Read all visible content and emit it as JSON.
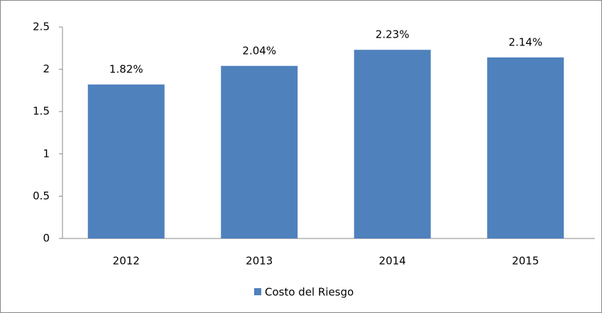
{
  "chart_data": {
    "type": "bar",
    "categories": [
      "2012",
      "2013",
      "2014",
      "2015"
    ],
    "series": [
      {
        "name": "Costo del Riesgo",
        "color": "#4f81bd",
        "values": [
          1.82,
          2.04,
          2.23,
          2.14
        ],
        "value_labels": [
          "1.82%",
          "2.04%",
          "2.23%",
          "2.14%"
        ]
      }
    ],
    "ylim": [
      0,
      2.5
    ],
    "yticks": [
      0,
      0.5,
      1,
      1.5,
      2,
      2.5
    ],
    "grid": false,
    "legend": "bottom"
  }
}
